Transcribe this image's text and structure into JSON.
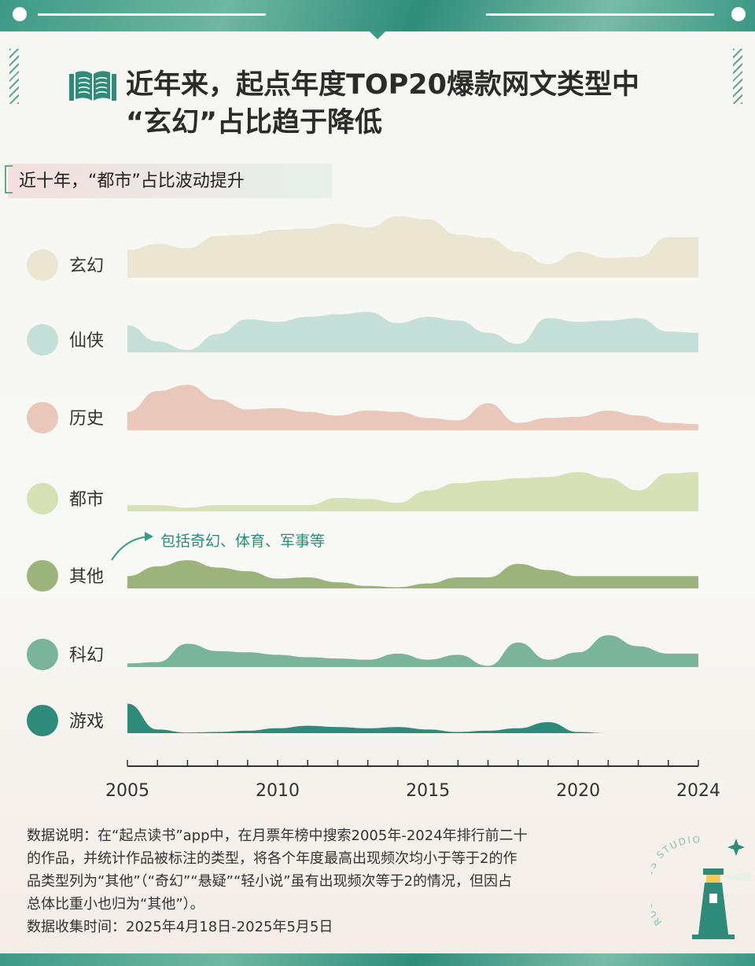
{
  "title_line1": "近年来，起点年度TOP20爆款网文类型中",
  "title_line2": "“玄幻”占比趋于降低",
  "subtitle": "近十年，“都市”占比波动提升",
  "annotation": "包括奇幻、体育、军事等",
  "note_lines": [
    "数据说明：在“起点读书”app中，在月票年榜中搜索2005年-2024年排行前二十",
    "的作品，并统计作品被标注的类型，将各个年度最高出现频次均小于等于2的作",
    "品类型列为“其他”（“奇幻”“悬疑”“轻小说”虽有出现频次等于2的情况，但因占",
    "总体比重小也归为“其他”）。",
    "数据收集时间：2025年4月18日-2025年5月5日"
  ],
  "stamp_text": "RUC NEWS STUDIO",
  "colors": {
    "accent": "#3d9a86",
    "玄幻": "#ebe6d1",
    "仙侠": "#c5e0d8",
    "历史": "#eac7bb",
    "都市": "#d6e2b6",
    "其他": "#9cb37c",
    "科幻": "#7ab49a",
    "游戏": "#2e8b7a"
  },
  "chart_data": {
    "type": "area",
    "x": [
      2005,
      2006,
      2007,
      2008,
      2009,
      2010,
      2011,
      2012,
      2013,
      2014,
      2015,
      2016,
      2017,
      2018,
      2019,
      2020,
      2021,
      2022,
      2023,
      2024
    ],
    "x_ticks": [
      "2005",
      "2010",
      "2015",
      "2020",
      "2024"
    ],
    "ylim": [
      0,
      10
    ],
    "series": [
      {
        "name": "玄幻",
        "values": [
          4.5,
          5.5,
          4.8,
          6.8,
          7.0,
          7.8,
          8.0,
          8.8,
          8.2,
          10.0,
          9.5,
          7.0,
          6.5,
          4.2,
          2.2,
          4.2,
          3.2,
          3.4,
          6.6,
          6.6
        ]
      },
      {
        "name": "仙侠",
        "values": [
          4.4,
          1.8,
          0.4,
          3.0,
          5.4,
          5.0,
          5.8,
          6.2,
          6.6,
          4.8,
          5.8,
          5.2,
          3.2,
          1.4,
          5.6,
          5.0,
          5.2,
          5.6,
          3.4,
          3.2
        ]
      },
      {
        "name": "历史",
        "values": [
          3.0,
          6.4,
          7.4,
          5.0,
          3.4,
          3.6,
          3.0,
          2.4,
          3.2,
          3.0,
          2.0,
          1.6,
          4.4,
          1.2,
          2.0,
          2.2,
          3.2,
          2.4,
          1.2,
          1.0
        ]
      },
      {
        "name": "都市",
        "values": [
          1.0,
          1.0,
          0.6,
          1.0,
          1.0,
          1.0,
          1.0,
          2.2,
          2.0,
          1.4,
          3.4,
          4.6,
          5.0,
          5.4,
          5.6,
          6.4,
          5.4,
          3.4,
          6.2,
          6.4
        ]
      },
      {
        "name": "其他",
        "values": [
          2.0,
          3.6,
          4.6,
          3.4,
          2.8,
          1.6,
          1.8,
          1.0,
          0.4,
          0.2,
          0.8,
          1.8,
          1.8,
          4.0,
          3.0,
          2.0,
          2.0,
          2.0,
          2.0,
          2.0
        ]
      },
      {
        "name": "科幻",
        "values": [
          0.6,
          0.8,
          3.8,
          2.6,
          2.4,
          2.0,
          1.6,
          1.4,
          1.2,
          2.2,
          1.2,
          2.0,
          0.2,
          4.0,
          1.2,
          2.4,
          5.2,
          3.4,
          2.2,
          2.2
        ]
      },
      {
        "name": "游戏",
        "values": [
          4.8,
          0.6,
          0.1,
          0.2,
          0.4,
          0.8,
          1.2,
          1.0,
          0.8,
          1.0,
          0.6,
          0.2,
          0.4,
          0.8,
          1.8,
          0.2,
          0.0,
          0.0,
          0.0,
          0.0
        ]
      }
    ]
  }
}
